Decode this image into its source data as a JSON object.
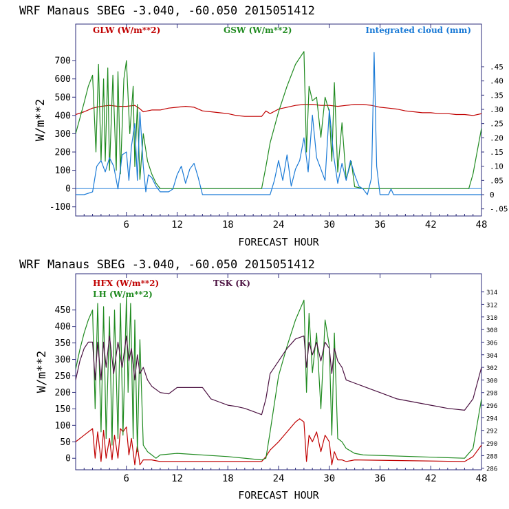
{
  "colors": {
    "frame": "#2a2a7a",
    "text": "#000000",
    "glw": "#c00000",
    "gsw": "#1f8a1f",
    "cloud": "#1a7ad6",
    "hfx": "#c00000",
    "lh": "#1f8a1f",
    "tsk": "#4a1040"
  },
  "chart_data": [
    {
      "type": "line",
      "title": "WRF   Manaus SBEG   -3.040, -60.050  2015051412",
      "xlabel": "FORECAST HOUR",
      "ylabel": "W/m**2",
      "xlim": [
        0,
        48
      ],
      "ylim": [
        -150,
        900
      ],
      "xticks": [
        "6",
        "12",
        "18",
        "24",
        "30",
        "36",
        "42",
        "48"
      ],
      "yticks": [
        "-100",
        "0",
        "100",
        "200",
        "300",
        "400",
        "500",
        "600",
        "700"
      ],
      "right_axis": {
        "ylim": [
          -0.075,
          0.6
        ],
        "ticks": [
          "-.05",
          "0",
          ".05",
          ".10",
          ".15",
          ".20",
          ".25",
          ".30",
          ".35",
          ".40",
          ".45"
        ]
      },
      "legend": [
        "GLW (W/m**2)",
        "GSW (W/m**2)",
        "Integrated cloud (mm)"
      ],
      "series": [
        {
          "name": "GLW (W/m**2)",
          "axis": "left",
          "color_key": "glw",
          "x": [
            0,
            1,
            2,
            3,
            4,
            5,
            6,
            7,
            7.5,
            8,
            9,
            10,
            11,
            12,
            13,
            14,
            15,
            16,
            17,
            18,
            19,
            20,
            21,
            22,
            22.5,
            23,
            24,
            25,
            26,
            27,
            28,
            29,
            30,
            31,
            32,
            33,
            34,
            35,
            36,
            37,
            38,
            39,
            40,
            41,
            42,
            43,
            44,
            45,
            46,
            47,
            48
          ],
          "y": [
            405,
            420,
            440,
            450,
            455,
            450,
            450,
            455,
            440,
            420,
            430,
            430,
            440,
            445,
            450,
            445,
            425,
            420,
            415,
            410,
            400,
            395,
            395,
            395,
            425,
            410,
            435,
            445,
            455,
            460,
            460,
            455,
            455,
            450,
            455,
            460,
            460,
            455,
            445,
            440,
            435,
            425,
            420,
            415,
            415,
            410,
            410,
            405,
            405,
            400,
            410
          ]
        },
        {
          "name": "GSW (W/m**2)",
          "axis": "left",
          "color_key": "gsw",
          "x": [
            0,
            1,
            1.5,
            2,
            2.4,
            2.7,
            3,
            3.3,
            3.5,
            3.8,
            4,
            4.4,
            4.8,
            5,
            5.3,
            5.7,
            6,
            6.4,
            6.8,
            7,
            7.3,
            7.6,
            8,
            8.5,
            9,
            9.5,
            10,
            12,
            22,
            22.5,
            23,
            24,
            25,
            26,
            27,
            27.3,
            27.6,
            28,
            28.5,
            29,
            29.5,
            30,
            30.3,
            30.6,
            31,
            31.5,
            32,
            32.6,
            33,
            34,
            46.5,
            47,
            48
          ],
          "y": [
            300,
            470,
            560,
            620,
            200,
            680,
            150,
            600,
            150,
            660,
            100,
            620,
            100,
            640,
            80,
            600,
            700,
            300,
            560,
            120,
            460,
            50,
            300,
            150,
            80,
            30,
            0,
            0,
            0,
            120,
            250,
            420,
            560,
            680,
            750,
            200,
            560,
            480,
            500,
            280,
            500,
            420,
            150,
            580,
            90,
            360,
            50,
            150,
            10,
            0,
            0,
            80,
            330
          ]
        },
        {
          "name": "Integrated cloud (mm)",
          "axis": "right",
          "color_key": "cloud",
          "x": [
            0,
            1,
            2,
            2.5,
            3,
            3.5,
            4,
            4.5,
            5,
            5.5,
            6,
            6.3,
            6.6,
            7,
            7.3,
            7.6,
            8,
            8.3,
            8.6,
            9,
            9.5,
            10,
            10.5,
            11,
            11.5,
            12,
            12.5,
            13,
            13.5,
            14,
            14.5,
            15,
            23,
            23.5,
            24,
            24.5,
            25,
            25.5,
            26,
            26.5,
            27,
            27.5,
            28,
            28.5,
            29,
            29.5,
            30,
            30.5,
            31,
            31.5,
            32,
            32.5,
            33,
            33.5,
            34,
            34.5,
            35,
            35.3,
            35.6,
            36,
            36.5,
            37,
            37.3,
            37.6,
            38,
            48
          ],
          "y": [
            0,
            0,
            0.01,
            0.1,
            0.12,
            0.08,
            0.13,
            0.1,
            0.02,
            0.14,
            0.15,
            0.05,
            0.17,
            0.25,
            0.05,
            0.29,
            0.1,
            0.01,
            0.07,
            0.06,
            0.03,
            0.01,
            0.01,
            0.01,
            0.02,
            0.07,
            0.1,
            0.04,
            0.09,
            0.11,
            0.06,
            0,
            0,
            0.05,
            0.12,
            0.05,
            0.14,
            0.03,
            0.09,
            0.12,
            0.2,
            0.08,
            0.28,
            0.13,
            0.09,
            0.05,
            0.3,
            0.14,
            0.04,
            0.11,
            0.05,
            0.12,
            0.07,
            0.03,
            0.02,
            0,
            0.06,
            0.5,
            0.1,
            0,
            0,
            0,
            0.02,
            0,
            0,
            0
          ]
        }
      ]
    },
    {
      "type": "line",
      "title": "WRF   Manaus SBEG   -3.040, -60.050  2015051412",
      "xlabel": "FORECAST HOUR",
      "ylabel": "W/m**2",
      "xlim": [
        0,
        48
      ],
      "ylim": [
        -35,
        560
      ],
      "xticks": [
        "6",
        "12",
        "18",
        "24",
        "30",
        "36",
        "42",
        "48"
      ],
      "yticks": [
        "0",
        "50",
        "100",
        "150",
        "200",
        "250",
        "300",
        "350",
        "400",
        "450"
      ],
      "right_axis": {
        "ylim": [
          285.75,
          316.85
        ],
        "ticks": [
          "286",
          "288",
          "290",
          "292",
          "294",
          "296",
          "298",
          "300",
          "302",
          "304",
          "306",
          "308",
          "310",
          "312",
          "314"
        ]
      },
      "legend": [
        "HFX (W/m**2)",
        "LH  (W/m**2)",
        "TSK (K)"
      ],
      "series": [
        {
          "name": "HFX (W/m**2)",
          "axis": "left",
          "color_key": "hfx",
          "x": [
            0,
            1,
            2,
            2.3,
            2.6,
            3,
            3.3,
            3.6,
            4,
            4.3,
            4.6,
            5,
            5.3,
            5.6,
            6,
            6.3,
            6.6,
            7,
            7.3,
            7.6,
            8,
            9,
            10,
            12,
            18,
            21,
            22,
            22.5,
            23,
            24,
            25,
            26,
            26.5,
            27,
            27.3,
            27.6,
            28,
            28.5,
            29,
            29.5,
            30,
            30.3,
            30.6,
            31,
            31.5,
            32,
            33,
            46,
            47,
            48
          ],
          "y": [
            50,
            70,
            90,
            0,
            80,
            -10,
            85,
            0,
            60,
            -5,
            70,
            0,
            90,
            80,
            95,
            10,
            60,
            -20,
            40,
            -20,
            -5,
            -5,
            -10,
            -10,
            -10,
            -10,
            -10,
            5,
            25,
            50,
            80,
            110,
            120,
            110,
            -10,
            70,
            50,
            80,
            20,
            70,
            50,
            -20,
            20,
            -5,
            -5,
            -10,
            -5,
            -10,
            5,
            40
          ]
        },
        {
          "name": "LH  (W/m**2)",
          "axis": "left",
          "color_key": "lh",
          "x": [
            0,
            0.5,
            1,
            1.5,
            2,
            2.3,
            2.6,
            3,
            3.3,
            3.6,
            4,
            4.3,
            4.6,
            5,
            5.3,
            5.6,
            6,
            6.2,
            6.5,
            6.8,
            7,
            7.3,
            7.6,
            8,
            8.5,
            9,
            9.5,
            10,
            12,
            18,
            22,
            22.5,
            23,
            24,
            25,
            26,
            27,
            27.3,
            27.6,
            28,
            28.5,
            29,
            29.5,
            30,
            30.3,
            30.6,
            31,
            31.5,
            32,
            33,
            34,
            46,
            47,
            48
          ],
          "y": [
            270,
            330,
            380,
            420,
            450,
            150,
            470,
            80,
            460,
            60,
            430,
            40,
            450,
            60,
            470,
            70,
            490,
            200,
            470,
            60,
            420,
            20,
            360,
            40,
            20,
            10,
            0,
            10,
            15,
            5,
            -5,
            0,
            80,
            250,
            340,
            420,
            480,
            200,
            440,
            260,
            380,
            150,
            420,
            340,
            70,
            380,
            60,
            50,
            30,
            15,
            10,
            0,
            30,
            180
          ]
        },
        {
          "name": "TSK (K)",
          "axis": "right",
          "color_key": "tsk",
          "x": [
            0,
            0.5,
            1,
            1.5,
            2,
            2.3,
            2.6,
            3,
            3.3,
            3.6,
            4,
            4.5,
            5,
            5.5,
            6,
            6.3,
            6.6,
            7,
            7.3,
            7.6,
            8,
            8.5,
            9,
            10,
            11,
            12,
            13,
            14,
            15,
            16,
            17,
            18,
            19,
            20,
            21,
            22,
            22.5,
            23,
            24,
            25,
            26,
            27,
            27.3,
            27.6,
            28,
            28.5,
            29,
            29.5,
            30,
            30.3,
            30.6,
            31,
            31.5,
            32,
            33,
            34,
            35,
            36,
            37,
            38,
            40,
            42,
            44,
            46,
            47,
            48
          ],
          "y": [
            300,
            303,
            305,
            306,
            306,
            300,
            306,
            300,
            306,
            302,
            307,
            301,
            306,
            302,
            307,
            303,
            305,
            300,
            304,
            301,
            302,
            300,
            299,
            298,
            297.8,
            298.8,
            298.8,
            298.8,
            298.8,
            297,
            296.5,
            296,
            295.8,
            295.5,
            295,
            294.5,
            297,
            301,
            303,
            305,
            306.5,
            307,
            302,
            306,
            304,
            306,
            303,
            306,
            305,
            301,
            305,
            303,
            302,
            300,
            299.5,
            299,
            298.5,
            298,
            297.5,
            297,
            296.5,
            296,
            295.5,
            295.2,
            297,
            302
          ]
        }
      ]
    }
  ]
}
